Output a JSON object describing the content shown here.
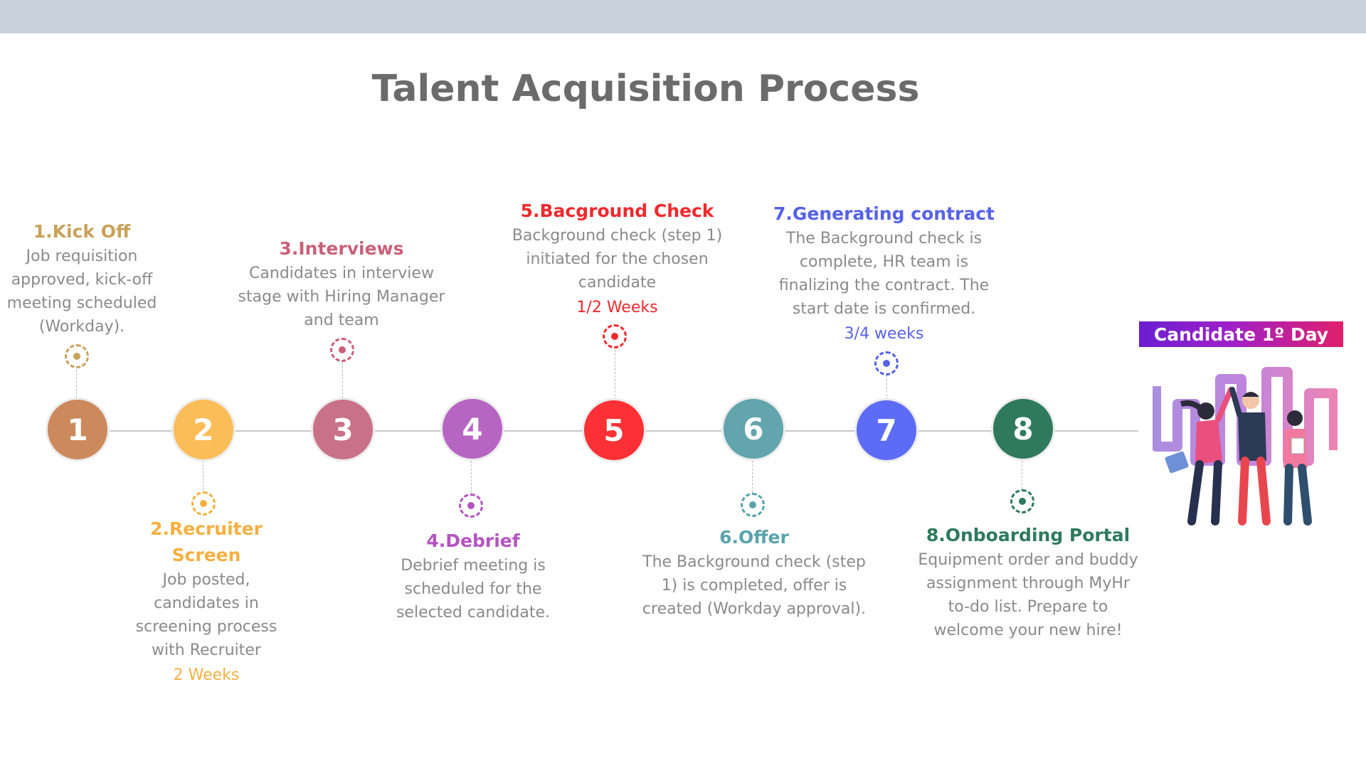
{
  "title": "Talent Acquisition Process",
  "badge": "Candidate 1º Day",
  "steps": [
    {
      "number": "1",
      "title": "1.Kick Off",
      "desc": "Job requisition approved, kick-off meeting scheduled (Workday).",
      "duration": "",
      "color": "#cc8a5c",
      "title_color": "#c9a25a"
    },
    {
      "number": "2",
      "title": "2.Recruiter Screen",
      "desc": "Job posted, candidates in screening process with Recruiter",
      "duration": "2 Weeks",
      "color": "#fbbd58",
      "title_color": "#f5b041"
    },
    {
      "number": "3",
      "title": "3.Interviews",
      "desc": "Candidates in interview stage with Hiring Manager and team",
      "duration": "",
      "color": "#c97287",
      "title_color": "#c9607a"
    },
    {
      "number": "4",
      "title": "4.Debrief",
      "desc": "Debrief meeting is scheduled for the selected candidate.",
      "duration": "",
      "color": "#b665c2",
      "title_color": "#b354c0"
    },
    {
      "number": "5",
      "title": "5.Bacground Check",
      "desc": "Background check (step 1) initiated for the chosen candidate",
      "duration": "1/2 Weeks",
      "color": "#fb3135",
      "title_color": "#f0292d"
    },
    {
      "number": "6",
      "title": "6.Offer",
      "desc": "The Background check (step 1) is completed, offer is created (Workday approval).",
      "duration": "",
      "color": "#62a5ac",
      "title_color": "#5aa3ab"
    },
    {
      "number": "7",
      "title": "7.Generating contract",
      "desc": "The Background check is complete, HR team is finalizing the contract. The start date is confirmed.",
      "duration": "3/4 weeks",
      "color": "#5d6cf7",
      "title_color": "#5662e8"
    },
    {
      "number": "8",
      "title": "8.Onboarding Portal",
      "desc": "Equipment order and buddy assignment through MyHr to-do list. Prepare to welcome your new hire!",
      "duration": "",
      "color": "#2f7a5f",
      "title_color": "#2f7a5f"
    }
  ]
}
